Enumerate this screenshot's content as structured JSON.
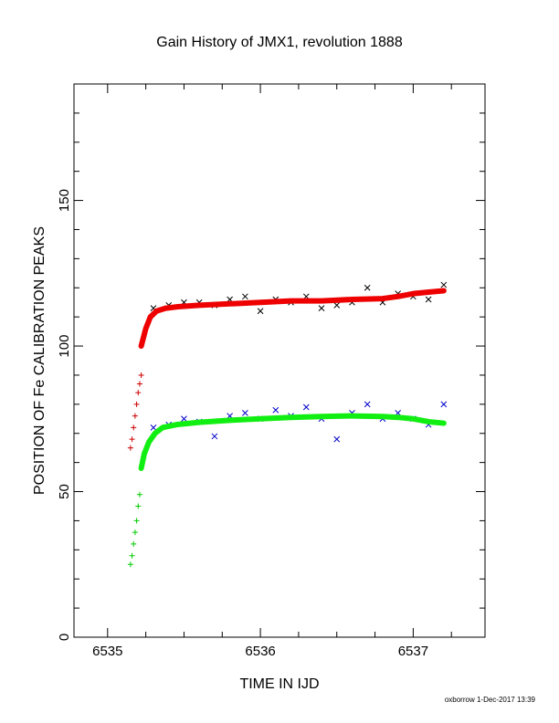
{
  "chart_data": {
    "type": "scatter",
    "title": "Gain History of JMX1, revolution 1888",
    "xlabel": "TIME IN IJD",
    "ylabel": "POSITION OF Fe CALIBRATION PEAKS",
    "xlim": [
      6534.78,
      6537.47
    ],
    "ylim": [
      0,
      190
    ],
    "x_ticks": [
      "6535",
      "6536",
      "6537"
    ],
    "x_tick_values": [
      6535,
      6536,
      6537
    ],
    "y_ticks": [
      "0",
      "50",
      "100",
      "150"
    ],
    "y_tick_values": [
      0,
      50,
      100,
      150
    ],
    "grid": false,
    "series": [
      {
        "marker": "plus",
        "color": "#cc0000",
        "x": [
          6535.15,
          6535.16,
          6535.17,
          6535.18,
          6535.19,
          6535.2,
          6535.21,
          6535.22
        ],
        "y": [
          65,
          68,
          72,
          76,
          80,
          84,
          87,
          90
        ]
      },
      {
        "marker": "plus",
        "color": "#00cc00",
        "x": [
          6535.15,
          6535.16,
          6535.17,
          6535.18,
          6535.19,
          6535.2,
          6535.21
        ],
        "y": [
          25,
          28,
          32,
          36,
          40,
          45,
          49
        ]
      },
      {
        "marker": "cross",
        "color": "#000000",
        "x": [
          6535.3,
          6535.4,
          6535.5,
          6535.6,
          6535.7,
          6535.8,
          6535.9,
          6536.0,
          6536.1,
          6536.2,
          6536.3,
          6536.4,
          6536.5,
          6536.6,
          6536.7,
          6536.8,
          6536.9,
          6537.0,
          6537.1,
          6537.2
        ],
        "y": [
          113,
          114,
          115,
          115,
          114,
          116,
          117,
          112,
          116,
          115,
          117,
          113,
          114,
          115,
          120,
          115,
          118,
          117,
          116,
          121
        ]
      },
      {
        "marker": "cross",
        "color": "#0000cc",
        "x": [
          6535.3,
          6535.4,
          6535.5,
          6535.6,
          6535.7,
          6535.8,
          6535.9,
          6536.0,
          6536.1,
          6536.2,
          6536.3,
          6536.4,
          6536.5,
          6536.6,
          6536.7,
          6536.8,
          6536.9,
          6537.0,
          6537.1,
          6537.2
        ],
        "y": [
          72,
          73,
          75,
          74,
          69,
          76,
          77,
          75,
          78,
          76,
          79,
          75,
          68,
          77,
          80,
          75,
          77,
          75,
          73,
          80
        ]
      },
      {
        "marker": "fit",
        "color": "#ee0000",
        "x": [
          6535.22,
          6535.25,
          6535.28,
          6535.32,
          6535.38,
          6535.46,
          6535.6,
          6535.8,
          6536.0,
          6536.2,
          6536.4,
          6536.6,
          6536.8,
          6536.9,
          6537.0,
          6537.1,
          6537.2
        ],
        "y": [
          100,
          106,
          110,
          112,
          113,
          113.5,
          114,
          114.5,
          115,
          115.5,
          115.5,
          116,
          116.3,
          117,
          118,
          118.5,
          119
        ]
      },
      {
        "marker": "fit",
        "color": "#11ee11",
        "x": [
          6535.22,
          6535.24,
          6535.27,
          6535.31,
          6535.36,
          6535.45,
          6535.6,
          6535.8,
          6536.0,
          6536.2,
          6536.4,
          6536.6,
          6536.8,
          6536.9,
          6537.0,
          6537.1,
          6537.2
        ],
        "y": [
          58,
          63,
          67,
          70,
          72,
          73,
          73.8,
          74.5,
          75,
          75.5,
          75.8,
          76,
          75.8,
          75.5,
          75,
          74,
          73.5
        ]
      }
    ]
  },
  "footer": "oxborrow 1-Dec-2017 13:39"
}
